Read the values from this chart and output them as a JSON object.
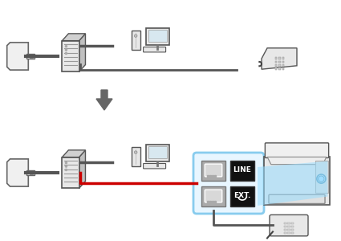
{
  "bg_color": "#ffffff",
  "red_cable_color": "#cc0000",
  "gray_cable_color": "#888888",
  "dark_cable_color": "#555555",
  "blue_highlight_color": "#99ddff",
  "blue_box_border": "#88ccee",
  "blue_box_fill": "#e8f6ff",
  "down_arrow_color": "#666666",
  "wall_fill": "#f0f0f0",
  "wall_edge": "#666666",
  "modem_front_fill": "#e8e8e8",
  "modem_top_fill": "#d0d0d0",
  "modem_right_fill": "#c0c0c0",
  "modem_edge": "#555555",
  "computer_fill": "#e8e8e8",
  "computer_edge": "#555555",
  "screen_fill": "#d8e8f0",
  "phone_fill": "#e8e8e8",
  "phone_edge": "#555555",
  "printer_fill": "#e8e8e8",
  "printer_edge": "#555555",
  "plug_fill": "#c8c8c8",
  "plug_edge": "#777777",
  "black": "#111111",
  "white": "#ffffff",
  "line_label_fill": "#111111",
  "ext_label_fill": "#111111"
}
